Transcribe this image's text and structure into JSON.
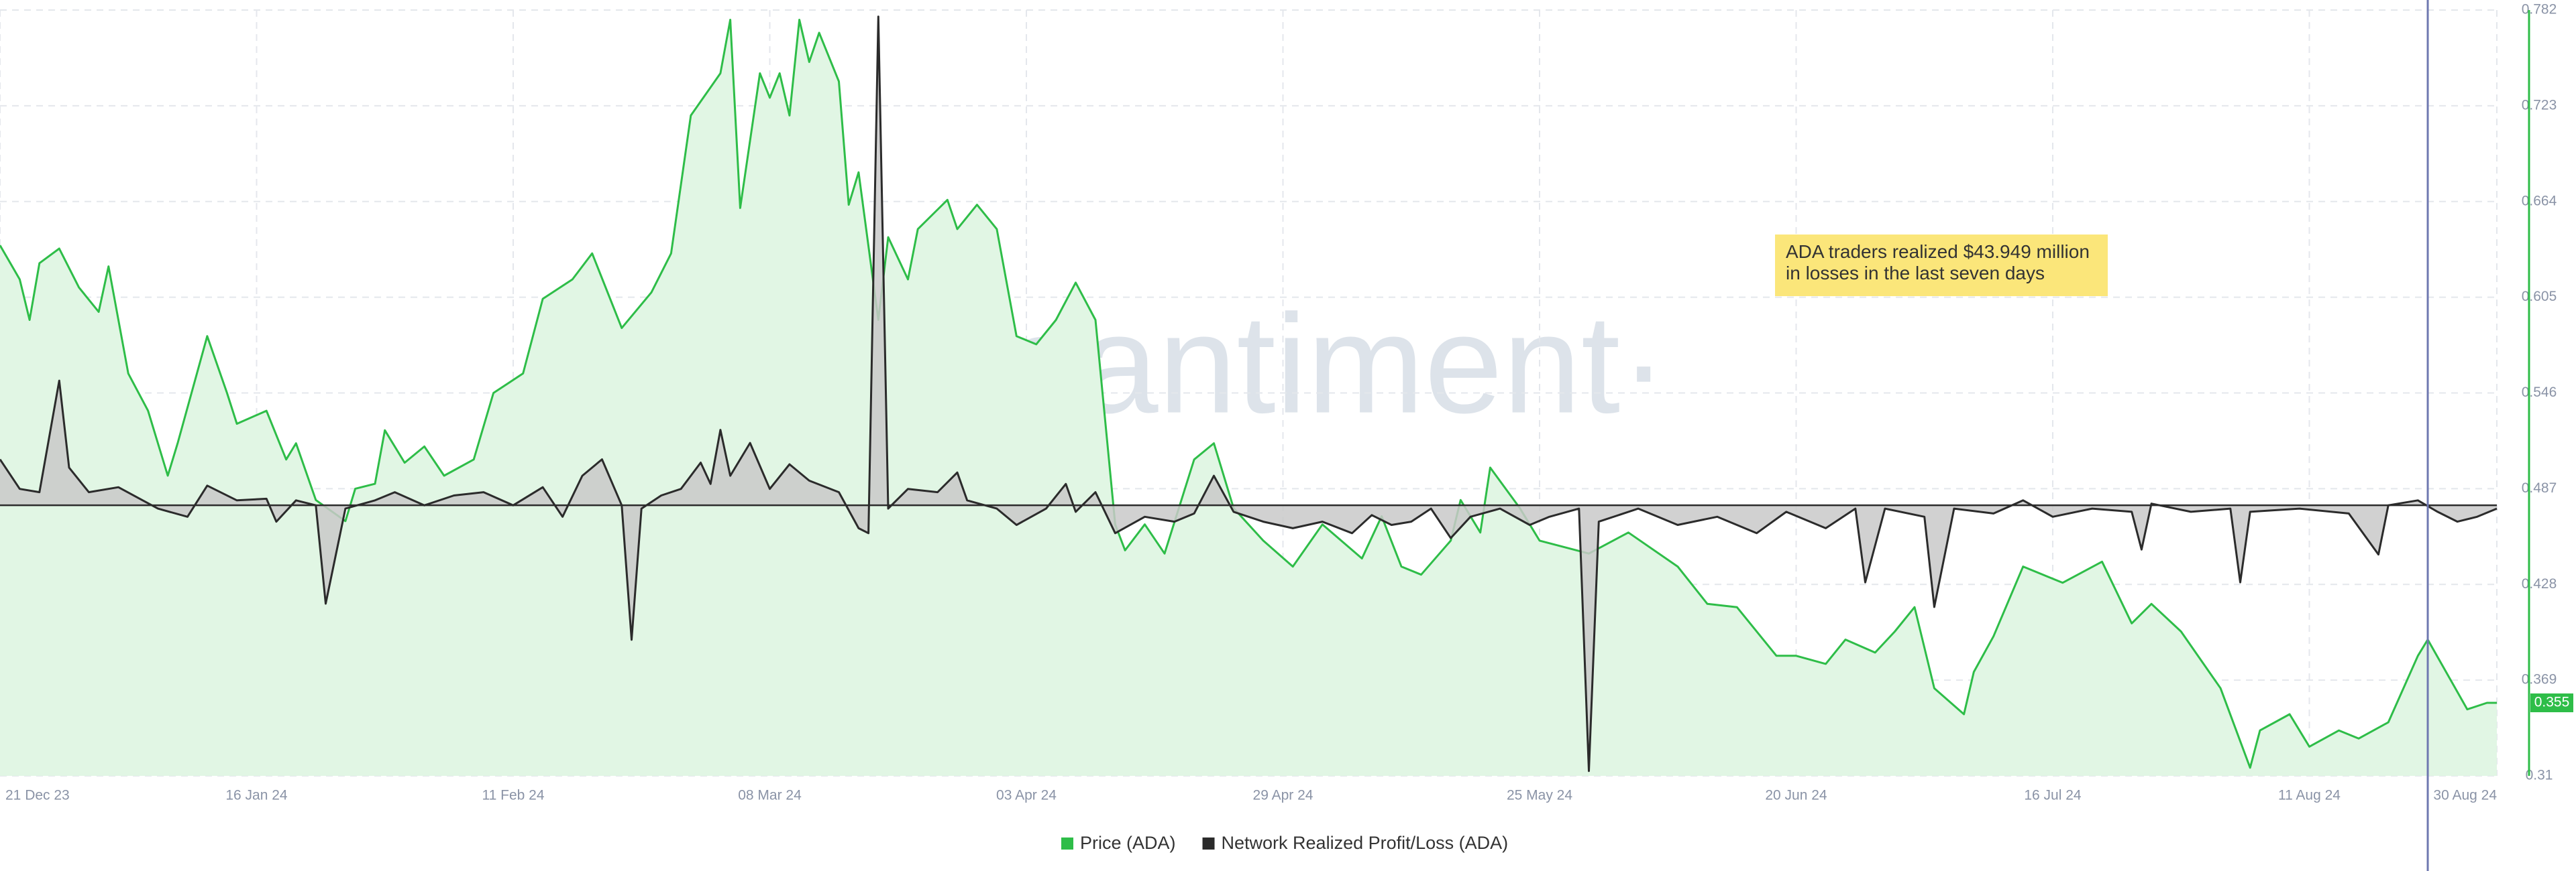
{
  "chart_data": {
    "type": "line",
    "annotation": "ADA traders realized $43.949 million in losses in the last seven days",
    "watermark": "·santiment·",
    "xlim": [
      "2023-12-21",
      "2024-08-30"
    ],
    "xticks": [
      {
        "value": "2023-12-21",
        "label": "21 Dec 23"
      },
      {
        "value": "2024-01-16",
        "label": "16 Jan 24"
      },
      {
        "value": "2024-02-11",
        "label": "11 Feb 24"
      },
      {
        "value": "2024-03-08",
        "label": "08 Mar 24"
      },
      {
        "value": "2024-04-03",
        "label": "03 Apr 24"
      },
      {
        "value": "2024-04-29",
        "label": "29 Apr 24"
      },
      {
        "value": "2024-05-25",
        "label": "25 May 24"
      },
      {
        "value": "2024-06-20",
        "label": "20 Jun 24"
      },
      {
        "value": "2024-07-16",
        "label": "16 Jul 24"
      },
      {
        "value": "2024-08-11",
        "label": "11 Aug 24"
      },
      {
        "value": "2024-08-30",
        "label": "30 Aug 24"
      }
    ],
    "ylim": [
      0.31,
      0.782
    ],
    "yticks": [
      0.31,
      0.369,
      0.428,
      0.487,
      0.546,
      0.605,
      0.664,
      0.723,
      0.782
    ],
    "y2lim": [
      -165,
      302
    ],
    "grid": true,
    "marker_x": "2024-08-23",
    "series": [
      {
        "name": "Price (ADA)",
        "color": "#2ebd48",
        "fill": "#e1f6e4",
        "x": [
          "2023-12-21",
          "2023-12-23",
          "2023-12-24",
          "2023-12-25",
          "2023-12-27",
          "2023-12-29",
          "2023-12-31",
          "2024-01-01",
          "2024-01-03",
          "2024-01-05",
          "2024-01-07",
          "2024-01-08",
          "2024-01-11",
          "2024-01-13",
          "2024-01-14",
          "2024-01-17",
          "2024-01-19",
          "2024-01-20",
          "2024-01-22",
          "2024-01-25",
          "2024-01-26",
          "2024-01-28",
          "2024-01-29",
          "2024-01-31",
          "2024-02-02",
          "2024-02-04",
          "2024-02-07",
          "2024-02-09",
          "2024-02-12",
          "2024-02-14",
          "2024-02-17",
          "2024-02-19",
          "2024-02-22",
          "2024-02-25",
          "2024-02-27",
          "2024-02-29",
          "2024-03-03",
          "2024-03-04",
          "2024-03-05",
          "2024-03-07",
          "2024-03-08",
          "2024-03-09",
          "2024-03-10",
          "2024-03-11",
          "2024-03-12",
          "2024-03-13",
          "2024-03-15",
          "2024-03-16",
          "2024-03-17",
          "2024-03-19",
          "2024-03-20",
          "2024-03-22",
          "2024-03-23",
          "2024-03-26",
          "2024-03-27",
          "2024-03-29",
          "2024-03-31",
          "2024-04-02",
          "2024-04-04",
          "2024-04-06",
          "2024-04-08",
          "2024-04-10",
          "2024-04-12",
          "2024-04-13",
          "2024-04-15",
          "2024-04-17",
          "2024-04-20",
          "2024-04-22",
          "2024-04-24",
          "2024-04-27",
          "2024-04-30",
          "2024-05-03",
          "2024-05-07",
          "2024-05-09",
          "2024-05-11",
          "2024-05-13",
          "2024-05-16",
          "2024-05-17",
          "2024-05-19",
          "2024-05-20",
          "2024-05-23",
          "2024-05-25",
          "2024-05-30",
          "2024-06-03",
          "2024-06-08",
          "2024-06-11",
          "2024-06-14",
          "2024-06-18",
          "2024-06-20",
          "2024-06-23",
          "2024-06-25",
          "2024-06-28",
          "2024-06-30",
          "2024-07-02",
          "2024-07-04",
          "2024-07-07",
          "2024-07-08",
          "2024-07-10",
          "2024-07-13",
          "2024-07-17",
          "2024-07-21",
          "2024-07-24",
          "2024-07-26",
          "2024-07-29",
          "2024-08-02",
          "2024-08-05",
          "2024-08-06",
          "2024-08-09",
          "2024-08-11",
          "2024-08-14",
          "2024-08-16",
          "2024-08-19",
          "2024-08-22",
          "2024-08-23",
          "2024-08-27",
          "2024-08-29",
          "2024-08-30"
        ],
        "values": [
          0.637,
          0.616,
          0.591,
          0.626,
          0.635,
          0.611,
          0.596,
          0.624,
          0.558,
          0.535,
          0.495,
          0.515,
          0.581,
          0.546,
          0.527,
          0.535,
          0.505,
          0.515,
          0.48,
          0.467,
          0.487,
          0.49,
          0.523,
          0.503,
          0.513,
          0.495,
          0.505,
          0.546,
          0.558,
          0.604,
          0.616,
          0.632,
          0.586,
          0.608,
          0.632,
          0.717,
          0.743,
          0.776,
          0.66,
          0.743,
          0.728,
          0.743,
          0.717,
          0.776,
          0.75,
          0.768,
          0.738,
          0.662,
          0.682,
          0.591,
          0.642,
          0.616,
          0.647,
          0.665,
          0.647,
          0.662,
          0.647,
          0.581,
          0.576,
          0.591,
          0.614,
          0.591,
          0.465,
          0.449,
          0.465,
          0.447,
          0.505,
          0.515,
          0.475,
          0.455,
          0.439,
          0.465,
          0.444,
          0.47,
          0.439,
          0.434,
          0.455,
          0.48,
          0.46,
          0.5,
          0.475,
          0.455,
          0.447,
          0.46,
          0.439,
          0.416,
          0.414,
          0.384,
          0.384,
          0.379,
          0.394,
          0.386,
          0.399,
          0.414,
          0.364,
          0.348,
          0.374,
          0.396,
          0.439,
          0.429,
          0.442,
          0.404,
          0.416,
          0.399,
          0.364,
          0.315,
          0.338,
          0.348,
          0.328,
          0.338,
          0.333,
          0.343,
          0.384,
          0.394,
          0.351,
          0.355,
          0.355
        ]
      },
      {
        "name": "Network Realized Profit/Loss (ADA)",
        "color": "#2b2b2b",
        "fill": "#c9c9c9",
        "axis": "y2",
        "x": [
          "2023-12-21",
          "2023-12-23",
          "2023-12-25",
          "2023-12-27",
          "2023-12-28",
          "2023-12-30",
          "2024-01-02",
          "2024-01-06",
          "2024-01-09",
          "2024-01-11",
          "2024-01-14",
          "2024-01-17",
          "2024-01-18",
          "2024-01-20",
          "2024-01-22",
          "2024-01-23",
          "2024-01-25",
          "2024-01-28",
          "2024-01-30",
          "2024-02-02",
          "2024-02-05",
          "2024-02-08",
          "2024-02-11",
          "2024-02-14",
          "2024-02-16",
          "2024-02-18",
          "2024-02-20",
          "2024-02-22",
          "2024-02-23",
          "2024-02-24",
          "2024-02-26",
          "2024-02-28",
          "2024-03-01",
          "2024-03-02",
          "2024-03-03",
          "2024-03-04",
          "2024-03-06",
          "2024-03-08",
          "2024-03-10",
          "2024-03-12",
          "2024-03-15",
          "2024-03-17",
          "2024-03-18",
          "2024-03-19",
          "2024-03-20",
          "2024-03-22",
          "2024-03-25",
          "2024-03-27",
          "2024-03-28",
          "2024-03-31",
          "2024-04-02",
          "2024-04-05",
          "2024-04-07",
          "2024-04-08",
          "2024-04-10",
          "2024-04-12",
          "2024-04-15",
          "2024-04-18",
          "2024-04-20",
          "2024-04-22",
          "2024-04-24",
          "2024-04-27",
          "2024-04-30",
          "2024-05-03",
          "2024-05-06",
          "2024-05-08",
          "2024-05-10",
          "2024-05-12",
          "2024-05-14",
          "2024-05-16",
          "2024-05-18",
          "2024-05-21",
          "2024-05-24",
          "2024-05-26",
          "2024-05-29",
          "2024-05-30",
          "2024-05-31",
          "2024-06-04",
          "2024-06-08",
          "2024-06-12",
          "2024-06-16",
          "2024-06-19",
          "2024-06-23",
          "2024-06-26",
          "2024-06-27",
          "2024-06-29",
          "2024-07-03",
          "2024-07-04",
          "2024-07-06",
          "2024-07-10",
          "2024-07-13",
          "2024-07-16",
          "2024-07-20",
          "2024-07-24",
          "2024-07-25",
          "2024-07-26",
          "2024-07-30",
          "2024-08-03",
          "2024-08-04",
          "2024-08-05",
          "2024-08-10",
          "2024-08-15",
          "2024-08-18",
          "2024-08-19",
          "2024-08-22",
          "2024-08-24",
          "2024-08-26",
          "2024-08-28",
          "2024-08-30"
        ],
        "values": [
          28,
          10,
          8,
          76,
          23,
          8,
          11,
          -2,
          -7,
          12,
          3,
          4,
          -10,
          3,
          0,
          -60,
          -2,
          3,
          8,
          0,
          6,
          8,
          0,
          11,
          -7,
          18,
          28,
          0,
          -82,
          -2,
          6,
          10,
          26,
          13,
          46,
          18,
          38,
          10,
          25,
          15,
          8,
          -14,
          -17,
          298,
          -2,
          10,
          8,
          20,
          3,
          -2,
          -12,
          -2,
          13,
          -4,
          8,
          -17,
          -7,
          -10,
          -5,
          18,
          -4,
          -10,
          -14,
          -10,
          -17,
          -6,
          -12,
          -10,
          -2,
          -20,
          -7,
          -2,
          -12,
          -7,
          -2,
          -162,
          -10,
          -2,
          -12,
          -7,
          -17,
          -4,
          -14,
          -2,
          -47,
          -2,
          -7,
          -62,
          -2,
          -5,
          3,
          -7,
          -2,
          -4,
          -27,
          1,
          -4,
          -2,
          -47,
          -4,
          -2,
          -5,
          -30,
          0,
          3,
          -4,
          -10,
          -7,
          -2
        ]
      }
    ]
  }
}
